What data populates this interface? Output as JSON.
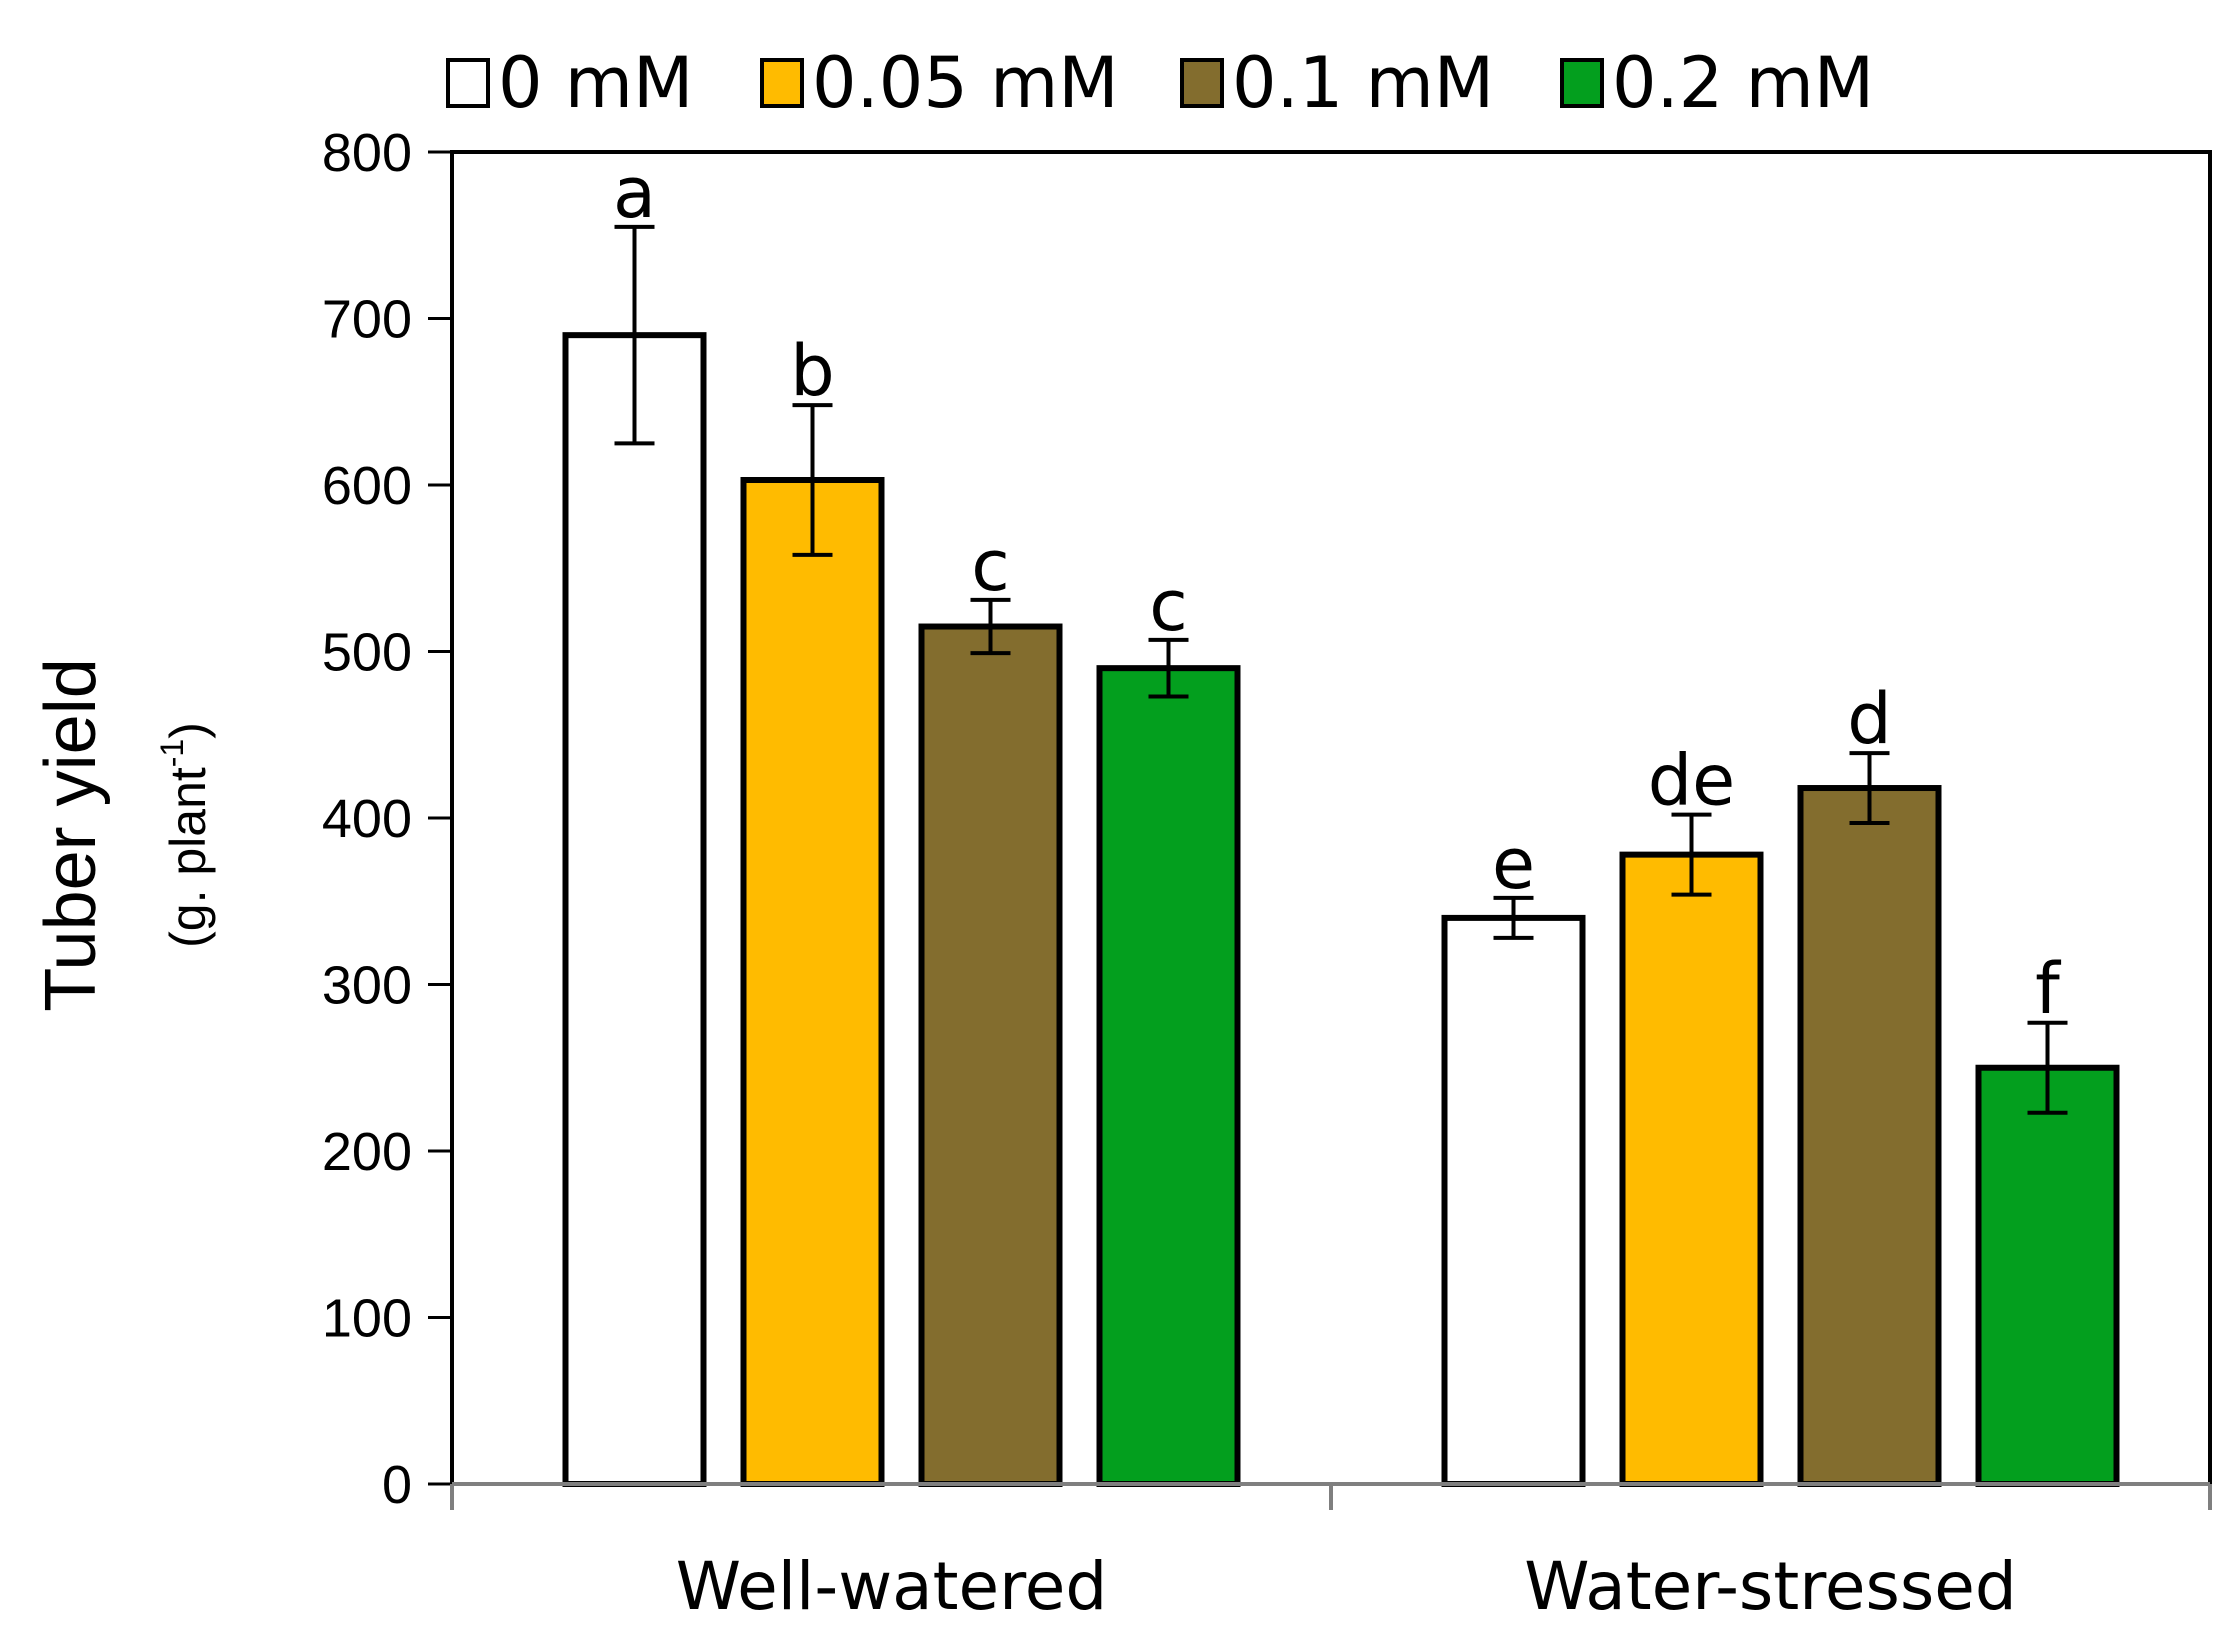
{
  "chart_data": {
    "type": "bar",
    "title": "",
    "xlabel": "",
    "ylabel": "Tuber yield",
    "ylabel_unit": "(g. plant",
    "ylabel_exp": "-1",
    "ylabel_close": ")",
    "ylim": [
      0,
      800
    ],
    "yticks": [
      0,
      100,
      200,
      300,
      400,
      500,
      600,
      700,
      800
    ],
    "categories": [
      "Well-watered",
      "Water-stressed"
    ],
    "legend_position": "top",
    "series": [
      {
        "name": "0 mM",
        "color": "#ffffff",
        "values": [
          690,
          340
        ],
        "errors": [
          65,
          12
        ],
        "letters": [
          "a",
          "e"
        ]
      },
      {
        "name": "0.05 mM",
        "color": "#ffbb00",
        "values": [
          603,
          378
        ],
        "errors": [
          45,
          24
        ],
        "letters": [
          "b",
          "de"
        ]
      },
      {
        "name": "0.1 mM",
        "color": "#836d2e",
        "values": [
          515,
          418
        ],
        "errors": [
          16,
          21
        ],
        "letters": [
          "c",
          "d"
        ]
      },
      {
        "name": "0.2 mM",
        "color": "#039f1e",
        "values": [
          490,
          250
        ],
        "errors": [
          17,
          27
        ],
        "letters": [
          "c",
          "f"
        ]
      }
    ]
  }
}
